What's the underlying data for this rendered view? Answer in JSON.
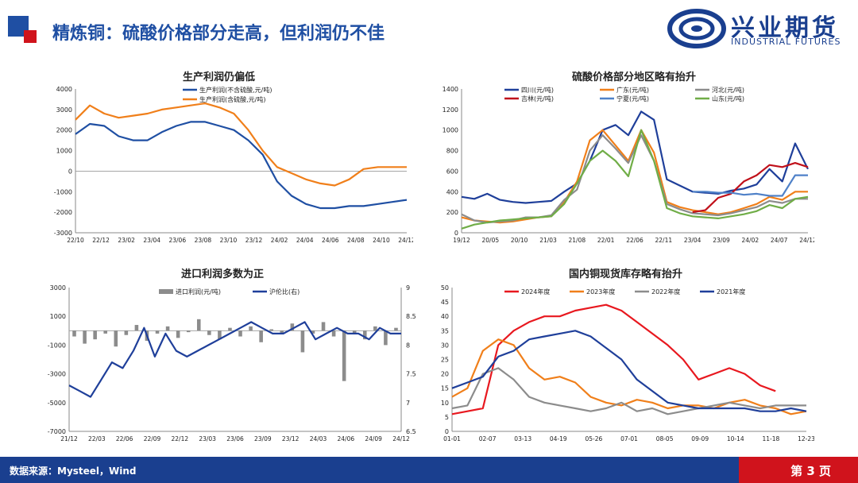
{
  "header": {
    "title": "精炼铜：硫酸价格部分走高，但利润仍不佳",
    "brand_name": "兴业期货",
    "brand_en": "INDUSTRIAL FUTURES",
    "colors": {
      "primary": "#1f4fa3",
      "accent": "#d0131c"
    }
  },
  "footer": {
    "source": "数据来源：Mysteel，Wind",
    "page": "第 3 页"
  },
  "chart_data": [
    {
      "type": "line",
      "title": "生产利润仍偏低",
      "ylim": [
        -3000,
        4000
      ],
      "yticks": [
        "4000",
        "3000",
        "2000",
        "1000",
        "0",
        "-1000",
        "-2000",
        "-3000"
      ],
      "xticks": [
        "22/10",
        "22/12",
        "23/02",
        "23/04",
        "23/06",
        "23/08",
        "23/10",
        "23/12",
        "24/02",
        "24/04",
        "24/06",
        "24/08",
        "24/10",
        "24/12"
      ],
      "legend_position": "top-left",
      "series": [
        {
          "name": "生产利润(不含硫酸,元/吨)",
          "color": "#1f4fa3",
          "values": [
            1800,
            2300,
            2200,
            1700,
            1500,
            1500,
            1900,
            2200,
            2400,
            2400,
            2200,
            2000,
            1500,
            800,
            -500,
            -1200,
            -1600,
            -1800,
            -1800,
            -1700,
            -1700,
            -1600,
            -1500,
            -1400
          ]
        },
        {
          "name": "生产利润(含硫酸,元/吨)",
          "color": "#f07f1a",
          "values": [
            2500,
            3200,
            2800,
            2600,
            2700,
            2800,
            3000,
            3100,
            3200,
            3300,
            3100,
            2800,
            2000,
            1000,
            200,
            -100,
            -400,
            -600,
            -700,
            -400,
            100,
            200,
            200,
            200
          ]
        }
      ]
    },
    {
      "type": "line",
      "title": "硫酸价格部分地区略有抬升",
      "ylim": [
        0,
        1400
      ],
      "yticks": [
        "1400",
        "1200",
        "1000",
        "800",
        "600",
        "400",
        "200",
        "0"
      ],
      "xticks": [
        "19/12",
        "20/05",
        "20/10",
        "21/03",
        "21/08",
        "22/01",
        "22/06",
        "22/11",
        "23/04",
        "23/09",
        "24/02",
        "24/07",
        "24/12"
      ],
      "legend_position": "top",
      "series": [
        {
          "name": "四川(元/吨)",
          "color": "#1f3f9a",
          "values": [
            350,
            330,
            380,
            320,
            300,
            290,
            300,
            310,
            400,
            480,
            700,
            1000,
            1050,
            950,
            1180,
            1100,
            520,
            460,
            400,
            390,
            380,
            410,
            430,
            470,
            620,
            500,
            870,
            620
          ]
        },
        {
          "name": "广东(元/吨)",
          "color": "#f07f1a",
          "values": [
            150,
            120,
            110,
            100,
            110,
            130,
            150,
            160,
            300,
            500,
            900,
            1000,
            850,
            700,
            1000,
            780,
            300,
            250,
            220,
            200,
            180,
            200,
            240,
            280,
            350,
            320,
            400,
            400
          ]
        },
        {
          "name": "河北(元/吨)",
          "color": "#8c8c8c",
          "values": [
            180,
            120,
            100,
            110,
            120,
            150,
            150,
            170,
            320,
            420,
            800,
            950,
            820,
            680,
            950,
            700,
            280,
            230,
            190,
            180,
            170,
            190,
            220,
            250,
            310,
            290,
            330,
            330
          ]
        },
        {
          "name": "吉林(元/吨)",
          "color": "#c0101a",
          "values": [
            null,
            null,
            null,
            null,
            null,
            null,
            null,
            null,
            null,
            null,
            null,
            null,
            null,
            null,
            null,
            null,
            null,
            null,
            200,
            220,
            340,
            380,
            500,
            560,
            660,
            640,
            680,
            640
          ]
        },
        {
          "name": "宁夏(元/吨)",
          "color": "#4f81c8",
          "values": [
            null,
            null,
            null,
            null,
            null,
            null,
            null,
            null,
            null,
            null,
            null,
            null,
            null,
            null,
            null,
            null,
            null,
            null,
            400,
            400,
            390,
            390,
            370,
            380,
            360,
            360,
            560,
            560
          ]
        },
        {
          "name": "山东(元/吨)",
          "color": "#70ad47",
          "values": [
            40,
            80,
            100,
            120,
            130,
            140,
            150,
            160,
            280,
            480,
            700,
            800,
            700,
            550,
            1000,
            700,
            240,
            190,
            160,
            150,
            140,
            160,
            180,
            210,
            270,
            240,
            330,
            350
          ]
        }
      ]
    },
    {
      "type": "bar-line",
      "title": "进口利润多数为正",
      "ylim": [
        -7000,
        3000
      ],
      "yticks": [
        "3000",
        "1000",
        "-1000",
        "-3000",
        "-5000",
        "-7000"
      ],
      "y2lim": [
        6.5,
        9
      ],
      "y2ticks": [
        "9",
        "8.5",
        "8",
        "7.5",
        "7",
        "6.5"
      ],
      "xticks": [
        "21/12",
        "22/03",
        "22/06",
        "22/09",
        "22/12",
        "23/03",
        "23/06",
        "23/09",
        "23/12",
        "24/03",
        "24/06",
        "24/09",
        "24/12"
      ],
      "legend_position": "top",
      "series": [
        {
          "name": "进口利润(元/吨)",
          "color": "#8c8c8c",
          "axis": "left",
          "kind": "bar",
          "values": [
            -400,
            -900,
            -600,
            -200,
            -1100,
            -300,
            400,
            -700,
            -200,
            300,
            -500,
            -100,
            800,
            -300,
            -600,
            200,
            -400,
            300,
            -800,
            100,
            -200,
            500,
            -1500,
            -200,
            600,
            -400,
            -3500,
            -200,
            -600,
            300,
            -1000,
            200
          ]
        },
        {
          "name": "沪伦比(右)",
          "color": "#1f3f9a",
          "axis": "right",
          "kind": "line",
          "values": [
            7.3,
            7.2,
            7.1,
            7.4,
            7.7,
            7.6,
            7.9,
            8.3,
            7.8,
            8.2,
            7.9,
            7.8,
            7.9,
            8.0,
            8.1,
            8.2,
            8.3,
            8.4,
            8.3,
            8.2,
            8.2,
            8.3,
            8.4,
            8.1,
            8.2,
            8.3,
            8.2,
            8.2,
            8.1,
            8.3,
            8.2,
            8.2
          ]
        }
      ]
    },
    {
      "type": "line",
      "title": "国内铜现货库存略有抬升",
      "ylim": [
        0,
        50
      ],
      "yticks": [
        "50",
        "45",
        "40",
        "35",
        "30",
        "25",
        "20",
        "15",
        "10",
        "5",
        "0"
      ],
      "xticks": [
        "01-01",
        "02-07",
        "03-13",
        "04-19",
        "05-26",
        "07-01",
        "08-05",
        "09-09",
        "10-14",
        "11-18",
        "12-23"
      ],
      "legend_position": "top",
      "series": [
        {
          "name": "2024年度",
          "color": "#e8181f",
          "values": [
            6,
            7,
            8,
            30,
            35,
            38,
            40,
            40,
            42,
            43,
            44,
            42,
            38,
            34,
            30,
            25,
            18,
            20,
            22,
            20,
            16,
            14,
            null,
            null
          ]
        },
        {
          "name": "2023年度",
          "color": "#f07f1a",
          "values": [
            12,
            15,
            28,
            32,
            30,
            22,
            18,
            19,
            17,
            12,
            10,
            9,
            11,
            10,
            8,
            9,
            9,
            8,
            10,
            11,
            9,
            8,
            6,
            7
          ]
        },
        {
          "name": "2022年度",
          "color": "#8c8c8c",
          "values": [
            8,
            9,
            20,
            22,
            18,
            12,
            10,
            9,
            8,
            7,
            8,
            10,
            7,
            8,
            6,
            7,
            8,
            9,
            10,
            9,
            8,
            9,
            9,
            9
          ]
        },
        {
          "name": "2021年度",
          "color": "#1f3f9a",
          "values": [
            15,
            17,
            19,
            26,
            28,
            32,
            33,
            34,
            35,
            33,
            29,
            25,
            18,
            14,
            10,
            9,
            8,
            8,
            8,
            8,
            7,
            7,
            8,
            7
          ]
        }
      ]
    }
  ]
}
